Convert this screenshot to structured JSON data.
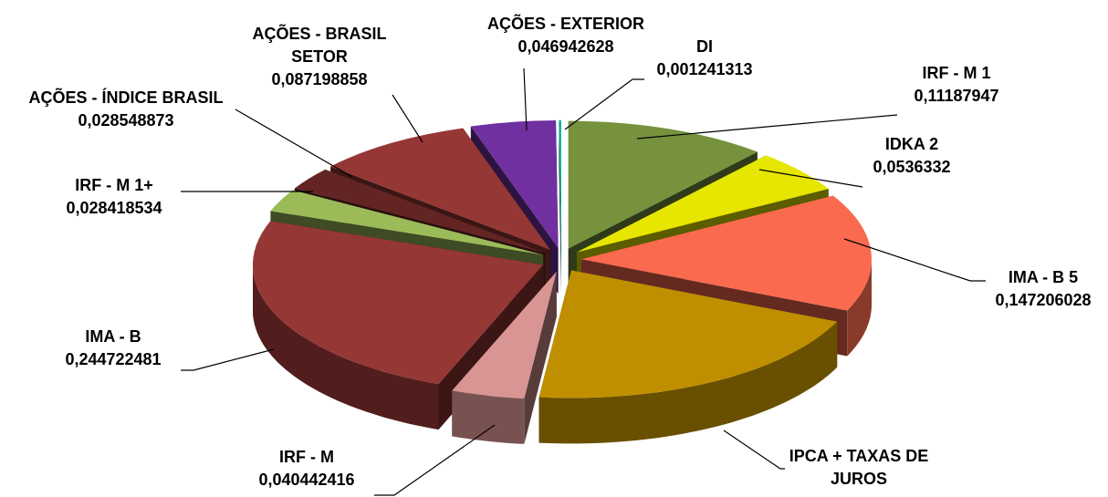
{
  "chart_data": {
    "type": "pie",
    "title": "",
    "legend": "none",
    "slices": [
      {
        "label": "IRF - M 1",
        "value": 0.11187947,
        "color": "#76923C"
      },
      {
        "label": "IDKA 2",
        "value": 0.0536332,
        "color": "#E6E600"
      },
      {
        "label": "IMA - B 5",
        "value": 0.147206028,
        "color": "#F96A4F"
      },
      {
        "label": "IPCA + TAXAS DE JUROS",
        "value": 0.2,
        "color": "#BF8F00"
      },
      {
        "label": "IRF - M",
        "value": 0.040442416,
        "color": "#D99594"
      },
      {
        "label": "IMA - B",
        "value": 0.244722481,
        "color": "#953735"
      },
      {
        "label": "IRF - M 1+",
        "value": 0.028418534,
        "color": "#9BBB59"
      },
      {
        "label": "AÇÕES - ÍNDICE BRASIL",
        "value": 0.028548873,
        "color": "#632523"
      },
      {
        "label": "AÇÕES - BRASIL SETOR",
        "value": 0.087198858,
        "color": "#953735"
      },
      {
        "label": "AÇÕES - EXTERIOR",
        "value": 0.046942628,
        "color": "#7030A0"
      },
      {
        "label": "DI",
        "value": 0.001241313,
        "color": "#00B0A0"
      }
    ],
    "data_labels": [
      {
        "lines": [
          "IRF - M 1",
          "0,11187947"
        ]
      },
      {
        "lines": [
          "IDKA 2",
          "0,0536332"
        ]
      },
      {
        "lines": [
          "IMA - B 5",
          "0,147206028"
        ]
      },
      {
        "lines": [
          "IPCA + TAXAS DE",
          "JUROS"
        ]
      },
      {
        "lines": [
          "IRF - M",
          "0,040442416"
        ]
      },
      {
        "lines": [
          "IMA - B",
          "0,244722481"
        ]
      },
      {
        "lines": [
          "IRF - M 1+",
          "0,028418534"
        ]
      },
      {
        "lines": [
          "AÇÕES - ÍNDICE BRASIL",
          "0,028548873"
        ]
      },
      {
        "lines": [
          "AÇÕES - BRASIL",
          "SETOR",
          "0,087198858"
        ]
      },
      {
        "lines": [
          "AÇÕES - EXTERIOR",
          "0,046942628"
        ]
      },
      {
        "lines": [
          "DI",
          "0,001241313"
        ]
      }
    ]
  }
}
